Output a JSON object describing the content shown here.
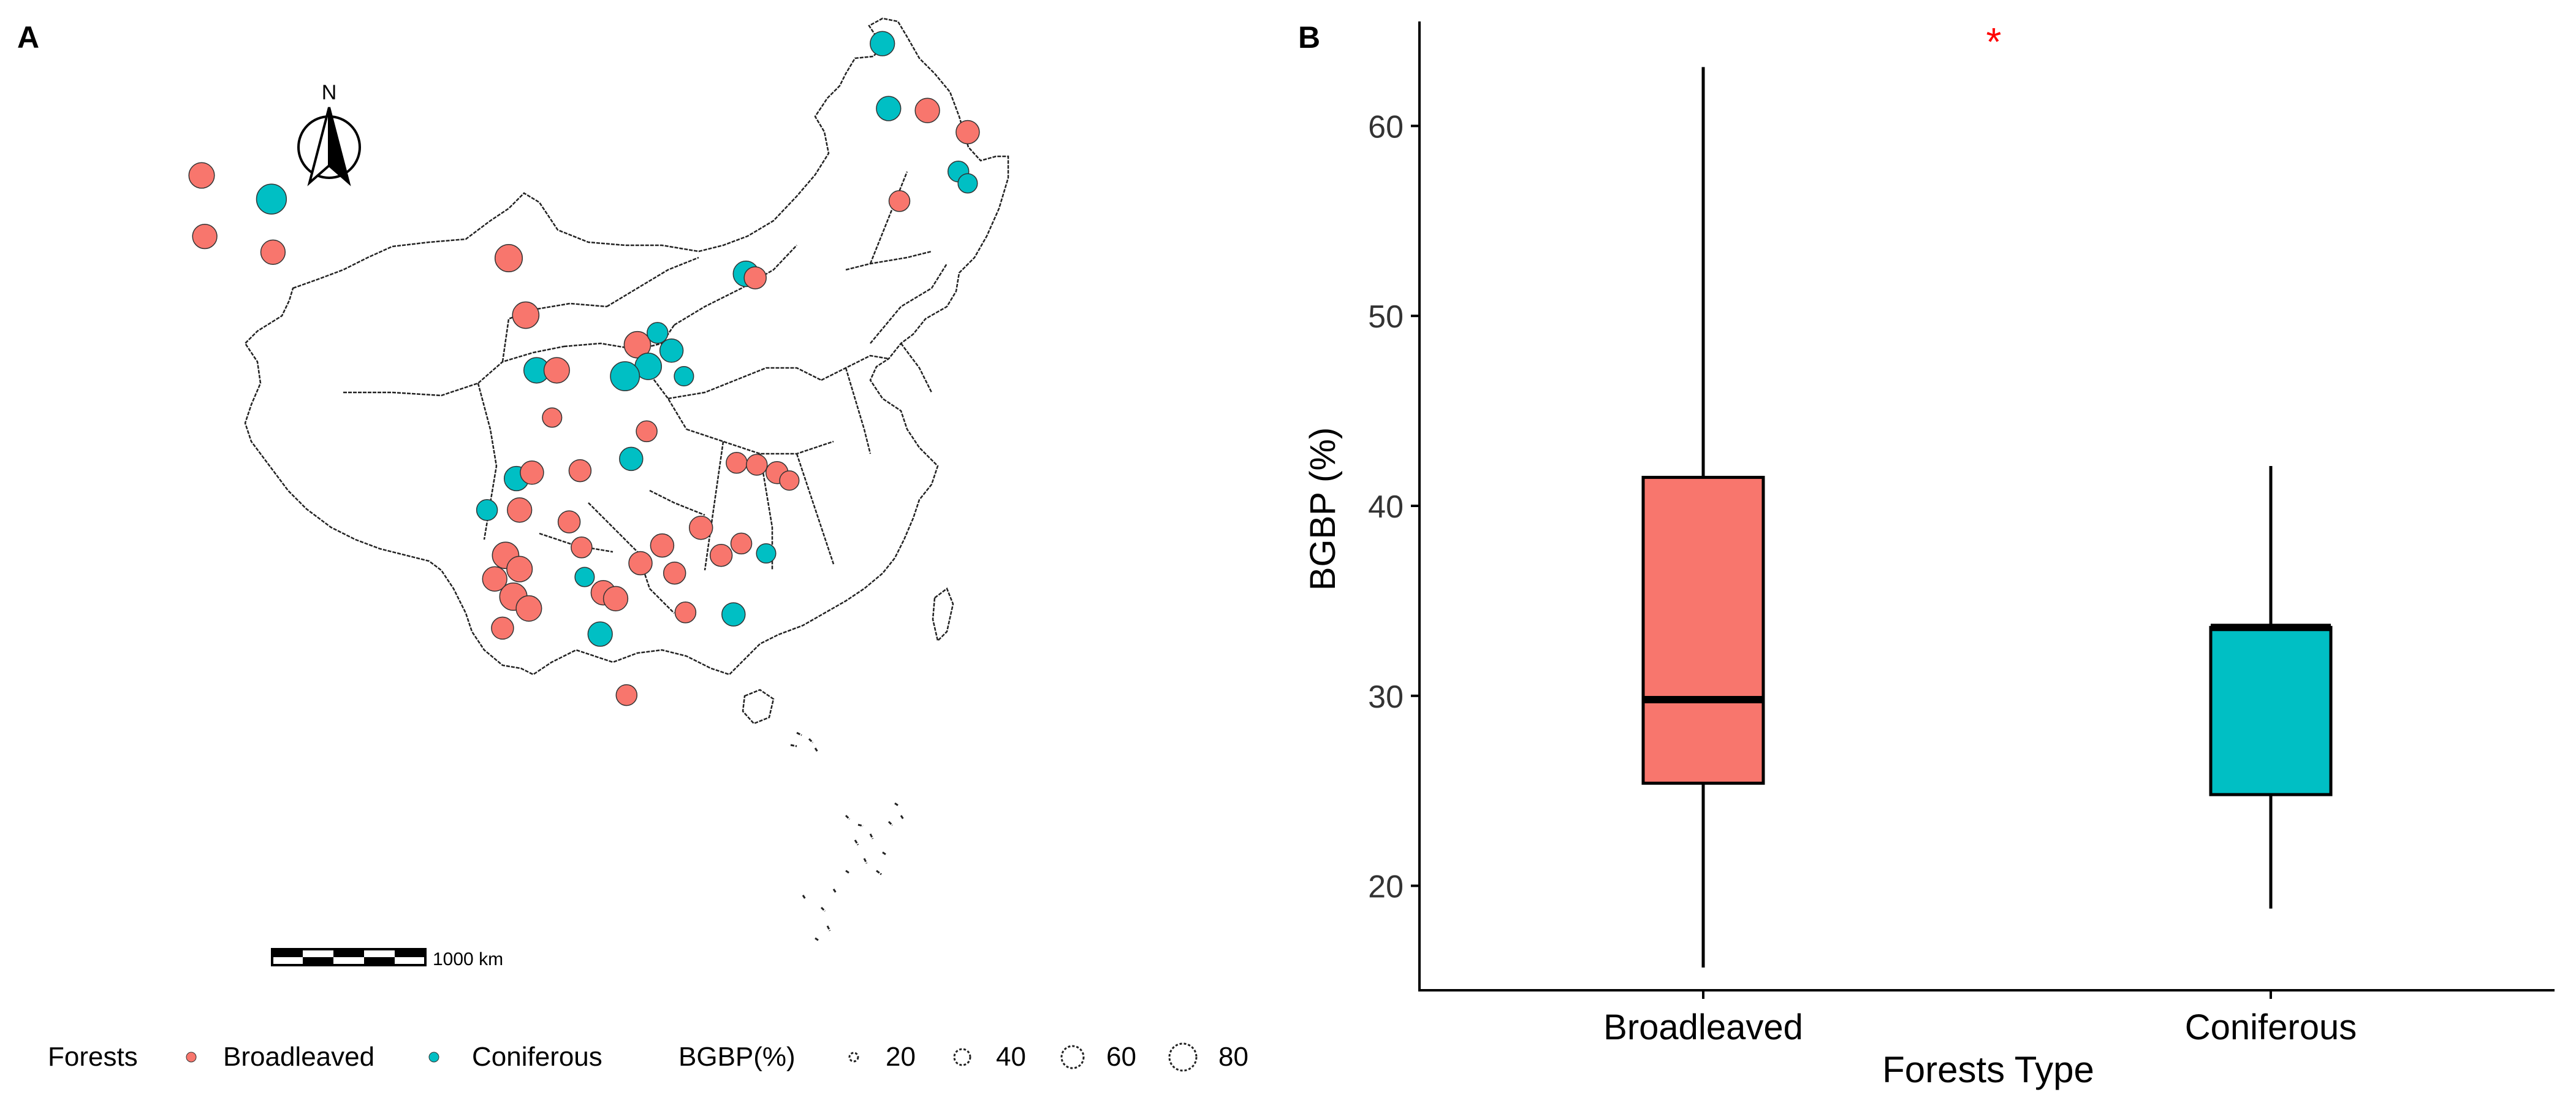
{
  "panel_a": {
    "label": "A",
    "north_label": "N",
    "scale_label": "1000 km",
    "legend": {
      "forests_title": "Forests",
      "broadleaved_label": "Broadleaved",
      "coniferous_label": "Coniferous",
      "size_title": "BGBP(%)",
      "size_values": [
        "20",
        "40",
        "60",
        "80"
      ]
    }
  },
  "panel_b": {
    "label": "B",
    "significance": "*"
  },
  "colors": {
    "broadleaved": "#F8766D",
    "coniferous": "#00BFC4",
    "significance": "#ff0000"
  },
  "chart_data": [
    {
      "type": "map",
      "title": "",
      "legend_title_color": "Forests",
      "legend_title_size": "BGBP(%)",
      "color_categories": [
        "Broadleaved",
        "Coniferous"
      ],
      "size_breaks": [
        20,
        40,
        60,
        80
      ],
      "points": [
        {
          "type": "Coniferous",
          "lon": 126.0,
          "lat": 52.3,
          "bgbp": 40
        },
        {
          "type": "Coniferous",
          "lon": 126.4,
          "lat": 49.0,
          "bgbp": 40
        },
        {
          "type": "Broadleaved",
          "lon": 128.9,
          "lat": 48.9,
          "bgbp": 40
        },
        {
          "type": "Broadleaved",
          "lon": 131.5,
          "lat": 47.8,
          "bgbp": 35
        },
        {
          "type": "Coniferous",
          "lon": 130.9,
          "lat": 45.8,
          "bgbp": 25
        },
        {
          "type": "Coniferous",
          "lon": 131.5,
          "lat": 45.2,
          "bgbp": 20
        },
        {
          "type": "Broadleaved",
          "lon": 127.1,
          "lat": 44.3,
          "bgbp": 25
        },
        {
          "type": "Broadleaved",
          "lon": 82.1,
          "lat": 45.6,
          "bgbp": 45
        },
        {
          "type": "Coniferous",
          "lon": 86.6,
          "lat": 44.4,
          "bgbp": 70
        },
        {
          "type": "Broadleaved",
          "lon": 82.3,
          "lat": 42.5,
          "bgbp": 40
        },
        {
          "type": "Broadleaved",
          "lon": 86.7,
          "lat": 41.7,
          "bgbp": 40
        },
        {
          "type": "Broadleaved",
          "lon": 101.9,
          "lat": 41.4,
          "bgbp": 55
        },
        {
          "type": "Coniferous",
          "lon": 117.2,
          "lat": 40.6,
          "bgbp": 45
        },
        {
          "type": "Broadleaved",
          "lon": 117.8,
          "lat": 40.4,
          "bgbp": 30
        },
        {
          "type": "Broadleaved",
          "lon": 103.0,
          "lat": 38.5,
          "bgbp": 50
        },
        {
          "type": "Broadleaved",
          "lon": 110.2,
          "lat": 37.0,
          "bgbp": 50
        },
        {
          "type": "Coniferous",
          "lon": 111.5,
          "lat": 37.6,
          "bgbp": 25
        },
        {
          "type": "Coniferous",
          "lon": 112.4,
          "lat": 36.7,
          "bgbp": 35
        },
        {
          "type": "Coniferous",
          "lon": 110.9,
          "lat": 35.9,
          "bgbp": 50
        },
        {
          "type": "Coniferous",
          "lon": 109.4,
          "lat": 35.4,
          "bgbp": 65
        },
        {
          "type": "Coniferous",
          "lon": 113.2,
          "lat": 35.4,
          "bgbp": 20
        },
        {
          "type": "Coniferous",
          "lon": 103.7,
          "lat": 35.7,
          "bgbp": 45
        },
        {
          "type": "Broadleaved",
          "lon": 105.0,
          "lat": 35.7,
          "bgbp": 45
        },
        {
          "type": "Broadleaved",
          "lon": 104.7,
          "lat": 33.3,
          "bgbp": 20
        },
        {
          "type": "Broadleaved",
          "lon": 110.8,
          "lat": 32.6,
          "bgbp": 25
        },
        {
          "type": "Coniferous",
          "lon": 109.8,
          "lat": 31.2,
          "bgbp": 35
        },
        {
          "type": "Broadleaved",
          "lon": 106.5,
          "lat": 30.6,
          "bgbp": 30
        },
        {
          "type": "Coniferous",
          "lon": 102.4,
          "lat": 30.2,
          "bgbp": 40
        },
        {
          "type": "Broadleaved",
          "lon": 103.4,
          "lat": 30.5,
          "bgbp": 35
        },
        {
          "type": "Broadleaved",
          "lon": 116.6,
          "lat": 31.0,
          "bgbp": 25
        },
        {
          "type": "Broadleaved",
          "lon": 117.9,
          "lat": 30.9,
          "bgbp": 25
        },
        {
          "type": "Broadleaved",
          "lon": 119.2,
          "lat": 30.5,
          "bgbp": 30
        },
        {
          "type": "Broadleaved",
          "lon": 120.0,
          "lat": 30.1,
          "bgbp": 20
        },
        {
          "type": "Coniferous",
          "lon": 100.5,
          "lat": 28.6,
          "bgbp": 25
        },
        {
          "type": "Broadleaved",
          "lon": 102.6,
          "lat": 28.6,
          "bgbp": 40
        },
        {
          "type": "Broadleaved",
          "lon": 101.7,
          "lat": 26.3,
          "bgbp": 50
        },
        {
          "type": "Broadleaved",
          "lon": 102.6,
          "lat": 25.6,
          "bgbp": 45
        },
        {
          "type": "Broadleaved",
          "lon": 101.0,
          "lat": 25.1,
          "bgbp": 40
        },
        {
          "type": "Broadleaved",
          "lon": 102.2,
          "lat": 24.2,
          "bgbp": 55
        },
        {
          "type": "Broadleaved",
          "lon": 103.2,
          "lat": 23.6,
          "bgbp": 45
        },
        {
          "type": "Broadleaved",
          "lon": 101.5,
          "lat": 22.6,
          "bgbp": 30
        },
        {
          "type": "Broadleaved",
          "lon": 105.8,
          "lat": 28.0,
          "bgbp": 30
        },
        {
          "type": "Broadleaved",
          "lon": 106.6,
          "lat": 26.7,
          "bgbp": 25
        },
        {
          "type": "Coniferous",
          "lon": 106.8,
          "lat": 25.2,
          "bgbp": 20
        },
        {
          "type": "Broadleaved",
          "lon": 108.0,
          "lat": 24.4,
          "bgbp": 40
        },
        {
          "type": "Broadleaved",
          "lon": 108.8,
          "lat": 24.1,
          "bgbp": 40
        },
        {
          "type": "Coniferous",
          "lon": 107.8,
          "lat": 22.3,
          "bgbp": 40
        },
        {
          "type": "Broadleaved",
          "lon": 110.4,
          "lat": 25.9,
          "bgbp": 35
        },
        {
          "type": "Broadleaved",
          "lon": 111.8,
          "lat": 26.8,
          "bgbp": 35
        },
        {
          "type": "Broadleaved",
          "lon": 112.6,
          "lat": 25.4,
          "bgbp": 30
        },
        {
          "type": "Broadleaved",
          "lon": 113.3,
          "lat": 23.4,
          "bgbp": 25
        },
        {
          "type": "Broadleaved",
          "lon": 114.3,
          "lat": 27.7,
          "bgbp": 35
        },
        {
          "type": "Broadleaved",
          "lon": 115.6,
          "lat": 26.3,
          "bgbp": 30
        },
        {
          "type": "Broadleaved",
          "lon": 116.9,
          "lat": 26.9,
          "bgbp": 25
        },
        {
          "type": "Coniferous",
          "lon": 118.5,
          "lat": 26.4,
          "bgbp": 20
        },
        {
          "type": "Coniferous",
          "lon": 116.4,
          "lat": 23.3,
          "bgbp": 35
        },
        {
          "type": "Broadleaved",
          "lon": 109.5,
          "lat": 19.2,
          "bgbp": 25
        }
      ]
    },
    {
      "type": "boxplot",
      "title": "",
      "xlabel": "Forests Type",
      "ylabel": "BGBP (%)",
      "categories": [
        "Broadleaved",
        "Coniferous"
      ],
      "ylim": [
        14.5,
        65.5
      ],
      "yticks": [
        20,
        30,
        40,
        50,
        60
      ],
      "grid": false,
      "boxes": [
        {
          "name": "Broadleaved",
          "whisker_low": 15.7,
          "q1": 25.4,
          "median": 29.8,
          "q3": 41.5,
          "whisker_high": 63.1
        },
        {
          "name": "Coniferous",
          "whisker_low": 18.8,
          "q1": 24.8,
          "median": 33.6,
          "q3": 33.6,
          "whisker_high": 42.1
        }
      ],
      "annotation": "*"
    }
  ]
}
